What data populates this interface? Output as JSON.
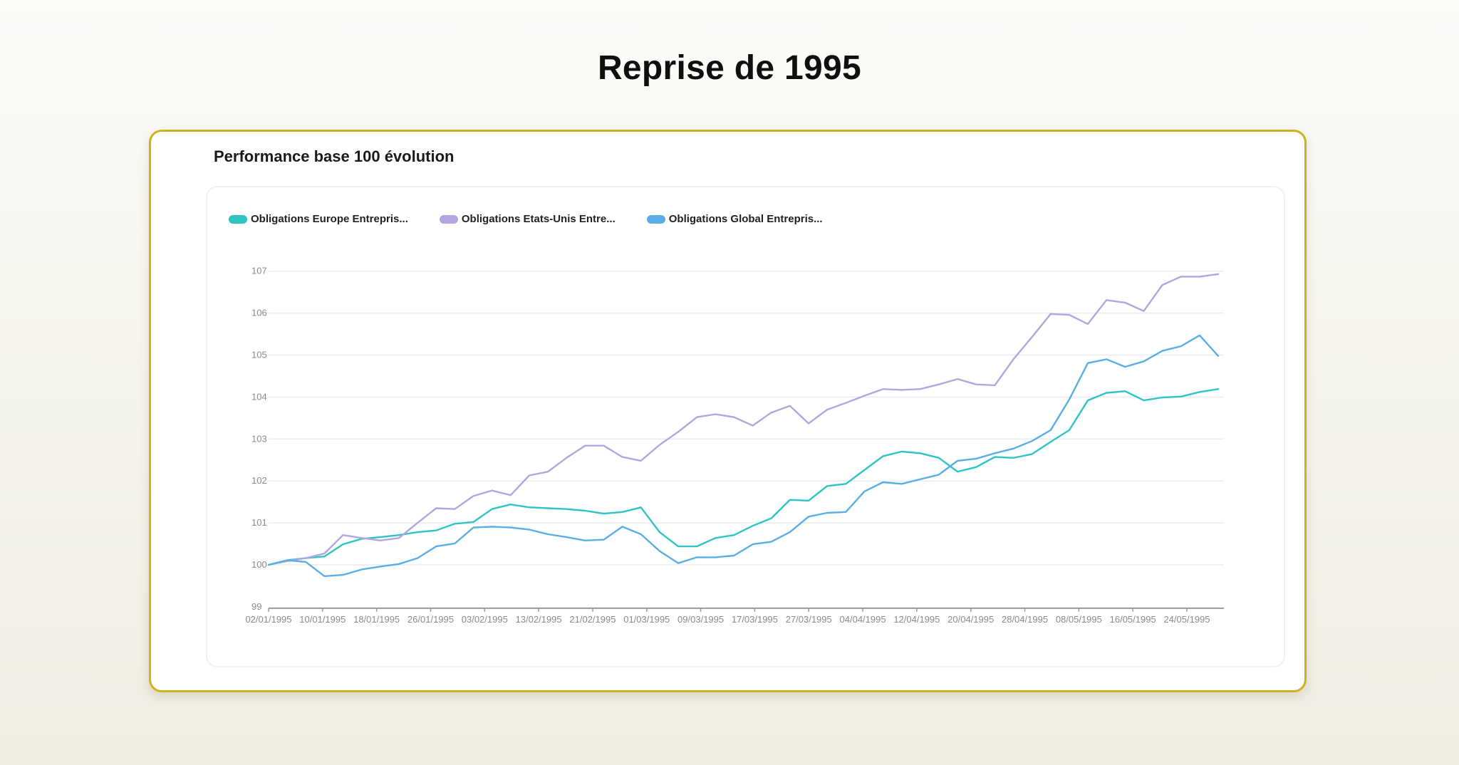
{
  "page": {
    "title": "Reprise de 1995"
  },
  "card": {
    "title": "Performance base 100 évolution"
  },
  "legend": [
    {
      "label": "Obligations Europe Entrepris...",
      "color": "#2ec4c4"
    },
    {
      "label": "Obligations Etats-Unis Entre...",
      "color": "#b3a5e0"
    },
    {
      "label": "Obligations Global Entrepris...",
      "color": "#5aaee6"
    }
  ],
  "chart_data": {
    "type": "line",
    "title": "Performance base 100 évolution",
    "xlabel": "",
    "ylabel": "",
    "ylim": [
      99,
      107
    ],
    "yticks": [
      99,
      100,
      101,
      102,
      103,
      104,
      105,
      106,
      107
    ],
    "xticks": [
      "02/01/1995",
      "10/01/1995",
      "18/01/1995",
      "26/01/1995",
      "03/02/1995",
      "13/02/1995",
      "21/02/1995",
      "01/03/1995",
      "09/03/1995",
      "17/03/1995",
      "27/03/1995",
      "04/04/1995",
      "12/04/1995",
      "20/04/1995",
      "28/04/1995",
      "08/05/1995",
      "16/05/1995",
      "24/05/1995"
    ],
    "grid": true,
    "legend_position": "top-left",
    "series": [
      {
        "name": "Obligations Europe Entrepris...",
        "color": "#2ec4c4",
        "values": [
          100.0,
          100.11,
          100.16,
          100.2,
          100.49,
          100.62,
          100.66,
          100.71,
          100.78,
          100.82,
          100.98,
          101.02,
          101.33,
          101.44,
          101.37,
          101.35,
          101.33,
          101.29,
          101.22,
          101.26,
          101.37,
          100.78,
          100.44,
          100.44,
          100.64,
          100.71,
          100.93,
          101.11,
          101.55,
          101.53,
          101.88,
          101.93,
          102.26,
          102.59,
          102.7,
          102.66,
          102.55,
          102.22,
          102.33,
          102.57,
          102.55,
          102.64,
          102.93,
          103.21,
          103.92,
          104.1,
          104.14,
          103.92,
          103.99,
          104.01,
          104.12,
          104.19
        ]
      },
      {
        "name": "Obligations Etats-Unis Entre...",
        "color": "#b3a5e0",
        "values": [
          100.0,
          100.09,
          100.16,
          100.27,
          100.71,
          100.64,
          100.58,
          100.64,
          101.0,
          101.35,
          101.33,
          101.64,
          101.77,
          101.66,
          102.13,
          102.22,
          102.55,
          102.84,
          102.84,
          102.57,
          102.48,
          102.86,
          103.17,
          103.52,
          103.59,
          103.52,
          103.32,
          103.63,
          103.79,
          103.37,
          103.7,
          103.86,
          104.03,
          104.19,
          104.17,
          104.19,
          104.3,
          104.43,
          104.3,
          104.28,
          104.9,
          105.43,
          105.98,
          105.96,
          105.74,
          106.31,
          106.25,
          106.05,
          106.67,
          106.87,
          106.87,
          106.93
        ]
      },
      {
        "name": "Obligations Global Entrepris...",
        "color": "#5aaee6",
        "values": [
          100.0,
          100.11,
          100.07,
          99.73,
          99.76,
          99.89,
          99.96,
          100.02,
          100.16,
          100.44,
          100.51,
          100.89,
          100.91,
          100.89,
          100.84,
          100.73,
          100.66,
          100.58,
          100.6,
          100.91,
          100.73,
          100.33,
          100.04,
          100.18,
          100.18,
          100.22,
          100.49,
          100.55,
          100.78,
          101.15,
          101.24,
          101.26,
          101.75,
          101.97,
          101.93,
          102.04,
          102.15,
          102.48,
          102.53,
          102.66,
          102.77,
          102.95,
          103.21,
          103.94,
          104.81,
          104.9,
          104.72,
          104.85,
          105.1,
          105.21,
          105.47,
          104.98
        ]
      }
    ]
  }
}
